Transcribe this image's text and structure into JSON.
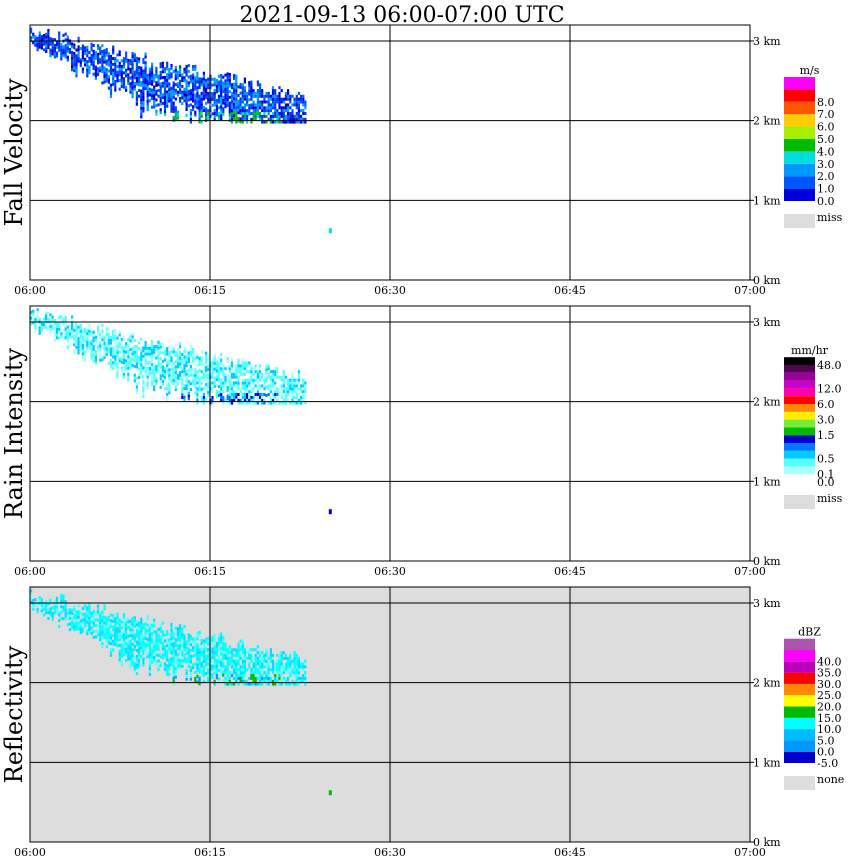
{
  "title": "2021-09-13   06:00-07:00 UTC",
  "x_ticks": [
    "06:00",
    "06:15",
    "06:30",
    "06:45",
    "07:00"
  ],
  "y_ticks": [
    "0 km",
    "1 km",
    "2 km",
    "3 km"
  ],
  "chart_data": [
    {
      "type": "heatmap",
      "name": "Fall Velocity",
      "xlim": [
        "06:00",
        "07:00"
      ],
      "ylim_km": [
        0,
        3.2
      ],
      "background": "#ffffff",
      "legend": {
        "unit": "m/s",
        "bins": [
          {
            "label": "0.0",
            "color": "#0000dd"
          },
          {
            "label": "1.0",
            "color": "#0055ff"
          },
          {
            "label": "2.0",
            "color": "#0099ff"
          },
          {
            "label": "3.0",
            "color": "#00dddd"
          },
          {
            "label": "4.0",
            "color": "#00bb00"
          },
          {
            "label": "5.0",
            "color": "#aaee00"
          },
          {
            "label": "6.0",
            "color": "#ffcc00"
          },
          {
            "label": "7.0",
            "color": "#ff5500"
          },
          {
            "label": "8.0",
            "color": "#ff0000"
          },
          {
            "label": "",
            "color": "#ff00ff"
          }
        ],
        "missing": {
          "label": "miss",
          "color": "#dddddd"
        }
      },
      "echo": {
        "start_min": 0,
        "end_min": 23,
        "top_km_start": 3.15,
        "top_km_end": 2.3,
        "base_km": 2.0
      },
      "colors": [
        "#0000dd",
        "#0033ee",
        "#0055ff",
        "#0099ff"
      ],
      "sparse_colors": [
        "#00dddd",
        "#00bb00"
      ]
    },
    {
      "type": "heatmap",
      "name": "Rain Intensity",
      "xlim": [
        "06:00",
        "07:00"
      ],
      "ylim_km": [
        0,
        3.2
      ],
      "background": "#ffffff",
      "legend": {
        "unit": "mm/hr",
        "bins": [
          {
            "label": "0.0",
            "color": "#ffffff"
          },
          {
            "label": "0.1",
            "color": "#aaffff"
          },
          {
            "label": "",
            "color": "#55ffff"
          },
          {
            "label": "0.5",
            "color": "#00ccff"
          },
          {
            "label": "",
            "color": "#0077ff"
          },
          {
            "label": "",
            "color": "#0000cc"
          },
          {
            "label": "1.5",
            "color": "#00bb00"
          },
          {
            "label": "",
            "color": "#77ee33"
          },
          {
            "label": "3.0",
            "color": "#ffee00"
          },
          {
            "label": "",
            "color": "#ff8800"
          },
          {
            "label": "6.0",
            "color": "#ff0000"
          },
          {
            "label": "",
            "color": "#ff00aa"
          },
          {
            "label": "12.0",
            "color": "#cc00cc"
          },
          {
            "label": "",
            "color": "#990099"
          },
          {
            "label": "",
            "color": "#550055"
          },
          {
            "label": "48.0",
            "color": "#000000"
          }
        ],
        "missing": {
          "label": "miss",
          "color": "#dddddd"
        }
      },
      "echo": {
        "start_min": 0,
        "end_min": 23,
        "top_km_start": 3.15,
        "top_km_end": 2.3,
        "base_km": 2.0
      },
      "colors": [
        "#aaffff",
        "#55ffff",
        "#00ccff",
        "#55ffff"
      ],
      "sparse_colors": [
        "#0000cc",
        "#0077ff"
      ]
    },
    {
      "type": "heatmap",
      "name": "Reflectivity",
      "xlim": [
        "06:00",
        "07:00"
      ],
      "ylim_km": [
        0,
        3.2
      ],
      "background": "#dddddd",
      "legend": {
        "unit": "dBZ",
        "bins": [
          {
            "label": "-5.0",
            "color": "#0000cc"
          },
          {
            "label": "0.0",
            "color": "#0099ff"
          },
          {
            "label": "5.0",
            "color": "#00bbff"
          },
          {
            "label": "10.0",
            "color": "#00ffff"
          },
          {
            "label": "15.0",
            "color": "#00bb00"
          },
          {
            "label": "20.0",
            "color": "#ffff00"
          },
          {
            "label": "25.0",
            "color": "#ff8800"
          },
          {
            "label": "30.0",
            "color": "#ff0000"
          },
          {
            "label": "35.0",
            "color": "#bb00bb"
          },
          {
            "label": "40.0",
            "color": "#ff00ff"
          },
          {
            "label": "",
            "color": "#aa55aa"
          }
        ],
        "missing": {
          "label": "none",
          "color": "#dddddd"
        }
      },
      "echo": {
        "start_min": 0,
        "end_min": 23,
        "top_km_start": 3.15,
        "top_km_end": 2.3,
        "base_km": 2.0
      },
      "colors": [
        "#00ffff",
        "#55ffff",
        "#00ddff",
        "#00ffff"
      ],
      "sparse_colors": [
        "#00bb00",
        "#0099ff"
      ]
    }
  ]
}
